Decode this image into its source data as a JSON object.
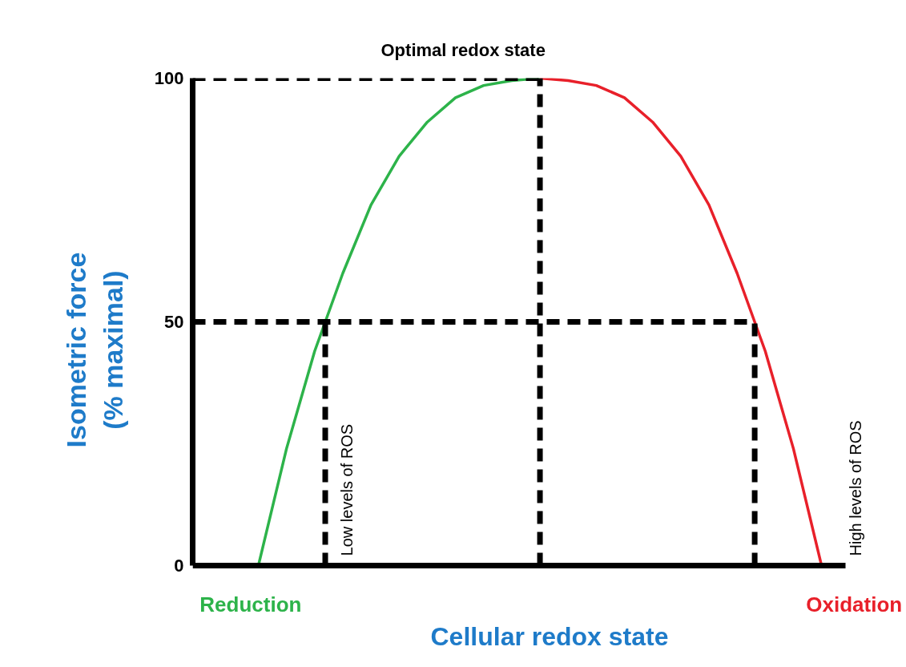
{
  "chart_data": {
    "type": "line",
    "title": "Optimal redox state",
    "xlabel": "Cellular redox state",
    "ylabel": "Isometric force\n(% maximal)",
    "categories": [
      null,
      null,
      null,
      null,
      null,
      null,
      null,
      null,
      null,
      null,
      null,
      null,
      null,
      null,
      null,
      null,
      null,
      null,
      null,
      null,
      null
    ],
    "series": [
      {
        "color": "#2db34a",
        "values": [
          0,
          24,
          44,
          60,
          74,
          84,
          91,
          96,
          98.5,
          99.5,
          100,
          null,
          null,
          null,
          null,
          null,
          null,
          null,
          null,
          null,
          null
        ]
      },
      {
        "color": "#e8202a",
        "values": [
          null,
          null,
          null,
          null,
          null,
          null,
          null,
          null,
          null,
          null,
          100,
          99.5,
          98.5,
          96,
          91,
          84,
          74,
          60,
          44,
          24,
          0
        ]
      }
    ],
    "ylim": [
      0,
      100
    ],
    "yticks": [
      0,
      50,
      100
    ],
    "tick_labels": "y",
    "grid": false,
    "marker": "none",
    "line_style": "solid",
    "ref_lines": [
      {
        "axis": "y",
        "value": 100,
        "color": "#000000",
        "line_style": "dashed"
      },
      {
        "axis": "y",
        "value": 50,
        "color": "#000000",
        "line_style": "dashed"
      }
    ],
    "annotations": [
      "Low levels of ROS",
      "High levels of ROS",
      "Reduction",
      "Oxidation"
    ]
  }
}
